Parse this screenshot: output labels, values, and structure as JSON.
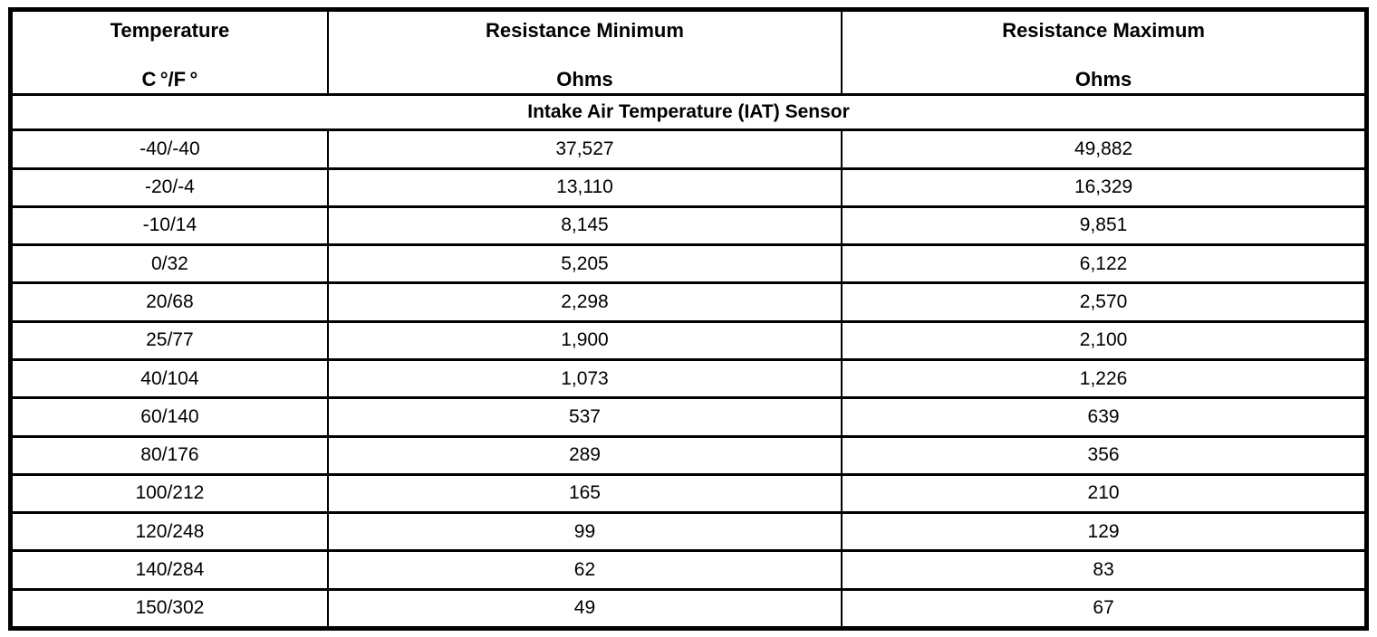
{
  "table": {
    "columns": [
      {
        "title": "Temperature",
        "unit": "C °/F °"
      },
      {
        "title": "Resistance Minimum",
        "unit": "Ohms"
      },
      {
        "title": "Resistance Maximum",
        "unit": "Ohms"
      }
    ],
    "section_title": "Intake Air Temperature (IAT) Sensor",
    "rows": [
      {
        "temp": "-40/-40",
        "min": "37,527",
        "max": "49,882"
      },
      {
        "temp": "-20/-4",
        "min": "13,110",
        "max": "16,329"
      },
      {
        "temp": "-10/14",
        "min": "8,145",
        "max": "9,851"
      },
      {
        "temp": "0/32",
        "min": "5,205",
        "max": "6,122"
      },
      {
        "temp": "20/68",
        "min": "2,298",
        "max": "2,570"
      },
      {
        "temp": "25/77",
        "min": "1,900",
        "max": "2,100"
      },
      {
        "temp": "40/104",
        "min": "1,073",
        "max": "1,226"
      },
      {
        "temp": "60/140",
        "min": "537",
        "max": "639"
      },
      {
        "temp": "80/176",
        "min": "289",
        "max": "356"
      },
      {
        "temp": "100/212",
        "min": "165",
        "max": "210"
      },
      {
        "temp": "120/248",
        "min": "99",
        "max": "129"
      },
      {
        "temp": "140/284",
        "min": "62",
        "max": "83"
      },
      {
        "temp": "150/302",
        "min": "49",
        "max": "67"
      }
    ],
    "colors": {
      "border": "#000000",
      "text": "#000000",
      "background": "#ffffff"
    }
  }
}
